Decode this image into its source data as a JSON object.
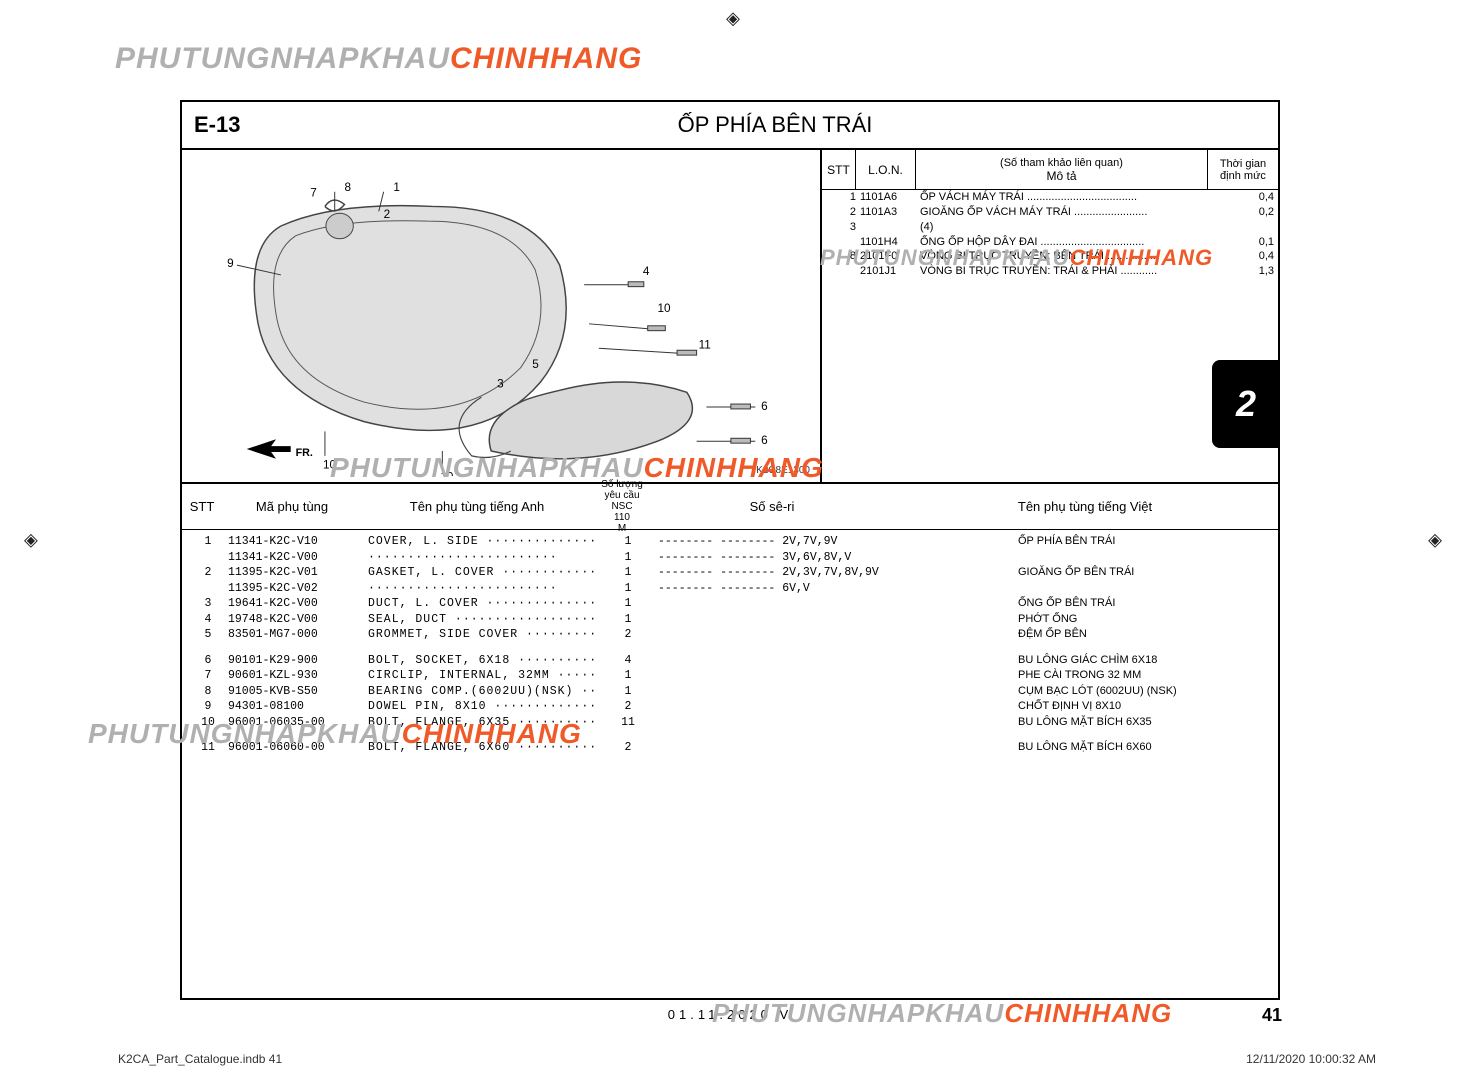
{
  "watermark": {
    "part1": "PHUTUNGNHAPKHAU",
    "part2": "CHINHHANG"
  },
  "section": {
    "code": "E-13",
    "title": "ỐP PHÍA BÊN TRÁI"
  },
  "diagram": {
    "code": "K2C8E1300",
    "fr_label": "FR.",
    "callouts": [
      "1",
      "2",
      "3",
      "4",
      "5",
      "6",
      "7",
      "8",
      "9",
      "10",
      "11"
    ],
    "colors": {
      "line": "#444444",
      "fill": "#dcdcdc"
    }
  },
  "sideTab": "2",
  "pageNumber": "41",
  "footerDate": "01.11.2020    V",
  "docFooter": {
    "left": "K2CA_Part_Catalogue.indb   41",
    "right": "12/11/2020   10:00:32 AM"
  },
  "refTable": {
    "head": {
      "stt": "STT",
      "lon": "L.O.N.",
      "descTop": "(Số tham khảo liên quan)",
      "descBot": "Mô tả",
      "timeTop": "Thời gian",
      "timeBot": "định mức"
    },
    "rows": [
      {
        "stt": "1",
        "lon": "1101A6",
        "desc": "ỐP VÁCH MÁY TRÁI ....................................",
        "time": "0,4"
      },
      {
        "stt": "2",
        "lon": "1101A3",
        "desc": "GIOĂNG ỐP VÁCH MÁY TRÁI ........................",
        "time": "0,2"
      },
      {
        "stt": "3",
        "lon": "",
        "desc": "(4)",
        "time": ""
      },
      {
        "stt": "",
        "lon": "1101H4",
        "desc": "ỐNG ỐP HỘP DÂY ĐAI ..................................",
        "time": "0,1"
      },
      {
        "stt": "8",
        "lon": "2101F0",
        "desc": "VÒNG BI TRỤC TRUYỀN: BÊN TRÁI ................",
        "time": "0,4"
      },
      {
        "stt": "",
        "lon": "2101J1",
        "desc": "VÒNG BI TRỤC TRUYỀN: TRÁI & PHẢI ............",
        "time": "1,3"
      }
    ]
  },
  "partsTable": {
    "head": {
      "stt": "STT",
      "code": "Mã phụ tùng",
      "en": "Tên phụ tùng tiếng Anh",
      "qtyTop": "Số lượng yêu cầu",
      "qtyMid": "NSC",
      "qtyBot": "110\nM",
      "serial": "Số sê-ri",
      "vn": "Tên phụ tùng tiếng Việt"
    },
    "rows": [
      {
        "stt": "1",
        "code": "11341-K2C-V10",
        "en": "COVER, L. SIDE ················",
        "qty": "1",
        "ser": "-------- -------- 2V,7V,9V",
        "vn": "ỐP PHÍA BÊN TRÁI"
      },
      {
        "stt": "",
        "code": "11341-K2C-V00",
        "en": "························",
        "qty": "1",
        "ser": "-------- -------- 3V,6V,8V,V",
        "vn": ""
      },
      {
        "stt": "2",
        "code": "11395-K2C-V01",
        "en": "GASKET, L. COVER ············",
        "qty": "1",
        "ser": "-------- -------- 2V,3V,7V,8V,9V",
        "vn": "GIOĂNG ỐP BÊN TRÁI"
      },
      {
        "stt": "",
        "code": "11395-K2C-V02",
        "en": "························",
        "qty": "1",
        "ser": "-------- -------- 6V,V",
        "vn": ""
      },
      {
        "stt": "3",
        "code": "19641-K2C-V00",
        "en": "DUCT, L. COVER ···············",
        "qty": "1",
        "ser": "",
        "vn": "ỐNG ỐP BÊN TRÁI"
      },
      {
        "stt": "4",
        "code": "19748-K2C-V00",
        "en": "SEAL, DUCT ····················",
        "qty": "1",
        "ser": "",
        "vn": "PHỚT ỐNG"
      },
      {
        "stt": "5",
        "code": "83501-MG7-000",
        "en": "GROMMET, SIDE COVER ··········",
        "qty": "2",
        "ser": "",
        "vn": "ĐỆM ỐP BÊN"
      }
    ],
    "rows2": [
      {
        "stt": "6",
        "code": "90101-K29-900",
        "en": "BOLT, SOCKET, 6X18 ···········",
        "qty": "4",
        "ser": "",
        "vn": "BU LÔNG GIÁC CHÌM 6X18"
      },
      {
        "stt": "7",
        "code": "90601-KZL-930",
        "en": "CIRCLIP, INTERNAL, 32MM ······",
        "qty": "1",
        "ser": "",
        "vn": "PHE CÀI TRONG 32 MM"
      },
      {
        "stt": "8",
        "code": "91005-KVB-S50",
        "en": "BEARING COMP.(6002UU)(NSK) ···",
        "qty": "1",
        "ser": "",
        "vn": "CỤM BẠC LÓT (6002UU) (NSK)"
      },
      {
        "stt": "9",
        "code": "94301-08100",
        "en": "DOWEL PIN, 8X10 ··············",
        "qty": "2",
        "ser": "",
        "vn": "CHỐT ĐỊNH VỊ 8X10"
      },
      {
        "stt": "10",
        "code": "96001-06035-00",
        "en": "BOLT, FLANGE, 6X35 ···········",
        "qty": "11",
        "ser": "",
        "vn": "BU LÔNG MẶT BÍCH 6X35"
      }
    ],
    "rows3": [
      {
        "stt": "11",
        "code": "96001-06060-00",
        "en": "BOLT, FLANGE, 6X60 ···········",
        "qty": "2",
        "ser": "",
        "vn": "BU LÔNG MẶT BÍCH 6X60"
      }
    ]
  }
}
